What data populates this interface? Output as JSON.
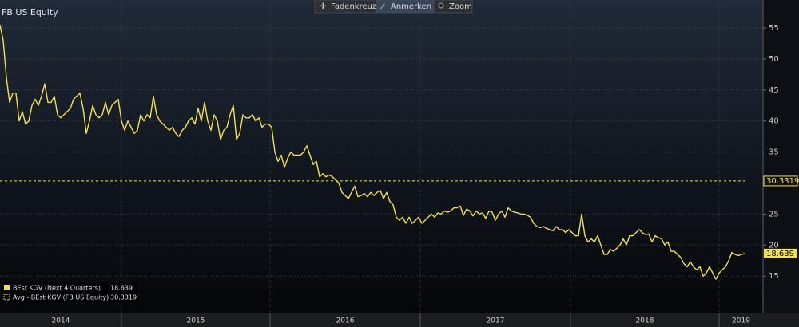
{
  "toolbar": [
    "Fadenkreuz",
    "Anmerken",
    "Zoom"
  ],
  "chart_data": {
    "type": "line",
    "title": "FB US Equity",
    "years": [
      "2014",
      "2015",
      "2016",
      "2017",
      "2018",
      "2019"
    ],
    "series": [
      {
        "name": "BEst KGV (Next 4 Quarters)",
        "color": "#f2e14c",
        "values": [
          55.5,
          53,
          47,
          43,
          44.5,
          44.5,
          40,
          41.5,
          39.5,
          40,
          42.5,
          43.5,
          42.5,
          44,
          46,
          43,
          43,
          44,
          41,
          40.5,
          41,
          41.5,
          42,
          43.5,
          44,
          44.5,
          42,
          38,
          40,
          42.5,
          41,
          40.5,
          41,
          43,
          41,
          42.5,
          43,
          43.5,
          40,
          38.5,
          40,
          39,
          38,
          38.5,
          41,
          40,
          41,
          40.5,
          44,
          41,
          40,
          39.5,
          39,
          38.5,
          39,
          38,
          37.5,
          38.5,
          39,
          40,
          40.5,
          39.5,
          42,
          40,
          43,
          40,
          38.5,
          41,
          40,
          37,
          38.5,
          39,
          41,
          42.5,
          37,
          38,
          41,
          40.5,
          40.5,
          41,
          40,
          40.5,
          39,
          39.5,
          39.5,
          39,
          35,
          33.5,
          34.5,
          32.5,
          34,
          35,
          34.5,
          34.5,
          34.5,
          35,
          36,
          34.5,
          33,
          33.5,
          31,
          31.5,
          31,
          31.3,
          31,
          30.5,
          30,
          28.5,
          28,
          27.5,
          28.5,
          29.5,
          27.8,
          28,
          28.3,
          27.8,
          28.5,
          28,
          28.5,
          28.8,
          27.5,
          28.5,
          27,
          26.5,
          24.5,
          24,
          24.5,
          23.5,
          24.5,
          23.5,
          24,
          24.5,
          23.5,
          24,
          24.5,
          25,
          24.5,
          25.2,
          25,
          25.5,
          25.3,
          25.5,
          26,
          26,
          26.3,
          24.8,
          25.8,
          25.5,
          24.7,
          25.5,
          25,
          25.2,
          24.3,
          25.5,
          25.3,
          24,
          25,
          25.5,
          24.5,
          26,
          25.5,
          25.3,
          25.2,
          25,
          25,
          24.8,
          24.5,
          23.5,
          23,
          22.8,
          23,
          22.7,
          22.5,
          22.3,
          23,
          22.5,
          22.5,
          22,
          22.5,
          22,
          21.5,
          21.5,
          25,
          21.5,
          20.5,
          21,
          20.5,
          21.5,
          20,
          18.5,
          18.5,
          19.3,
          19,
          19.5,
          20,
          21,
          20,
          21.5,
          21.5,
          22,
          22.5,
          22,
          21.7,
          21.8,
          20.5,
          21.5,
          21.2,
          21,
          20,
          20.5,
          19,
          19,
          18.5,
          18,
          17,
          16.5,
          17.3,
          16.5,
          16,
          16.5,
          15,
          15.5,
          16.5,
          15.5,
          14.5,
          15.5,
          16,
          16.5,
          17.5,
          18.8,
          18.5,
          18.3,
          18.5,
          18.639
        ]
      },
      {
        "name": "Avg - BEst KGV (FB US Equity)",
        "color": "#f2e14c",
        "style": "dashed",
        "value": 30.3319
      }
    ],
    "ylim": [
      9.5,
      59.5
    ],
    "yticks": [
      15,
      20,
      25,
      30,
      35,
      40,
      45,
      50,
      55
    ],
    "grid": true
  }
}
